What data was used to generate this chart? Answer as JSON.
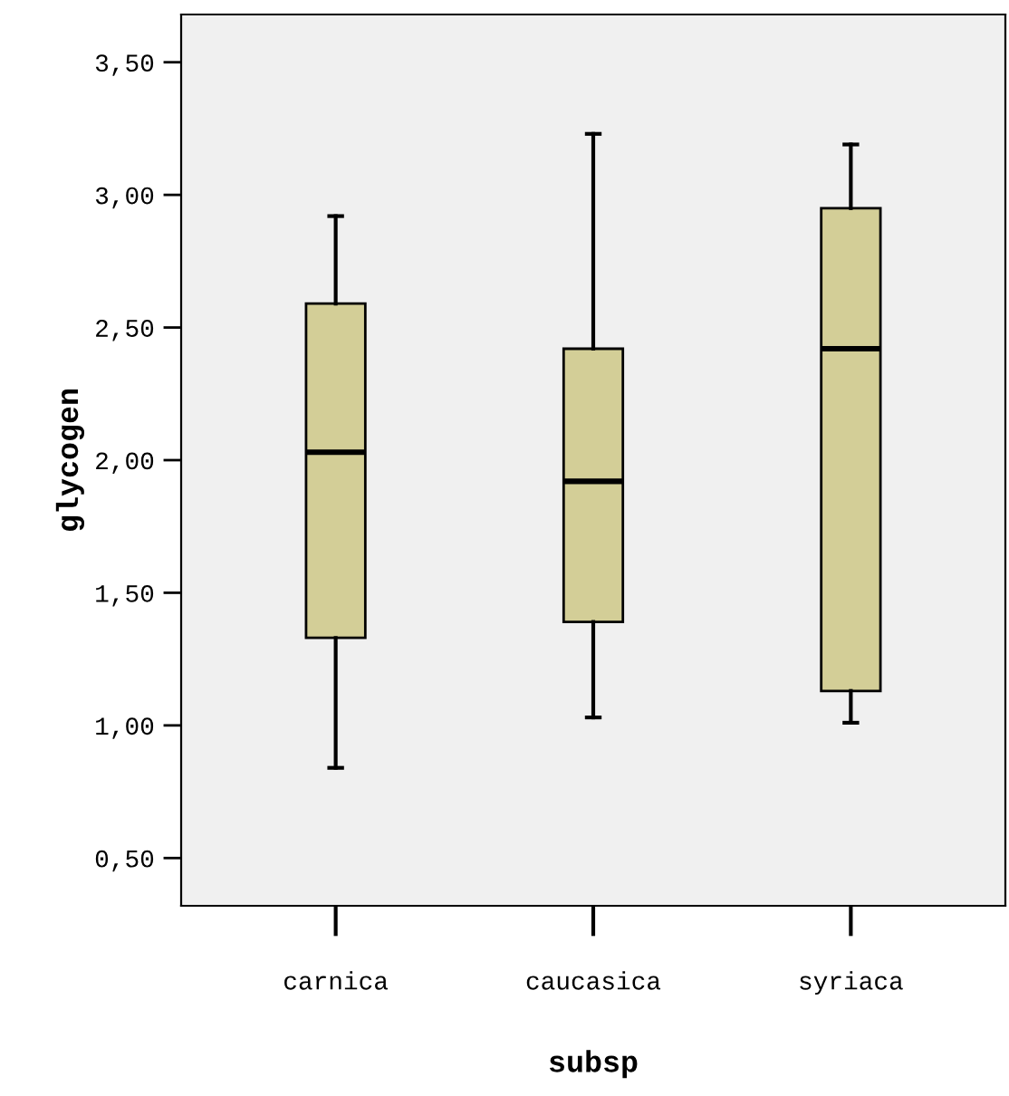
{
  "chart_data": {
    "type": "box",
    "xlabel": "subsp",
    "ylabel": "glycogen",
    "categories": [
      "carnica",
      "caucasica",
      "syriaca"
    ],
    "color": "#d3ce97",
    "boxes": [
      {
        "low": 0.84,
        "q1": 1.33,
        "median": 2.03,
        "q3": 2.59,
        "high": 2.92
      },
      {
        "low": 1.03,
        "q1": 1.39,
        "median": 1.92,
        "q3": 2.42,
        "high": 3.23
      },
      {
        "low": 1.01,
        "q1": 1.13,
        "median": 2.42,
        "q3": 2.95,
        "high": 3.19
      }
    ],
    "ylim": [
      0.32,
      3.68
    ],
    "yticks": [
      {
        "value": 0.5,
        "label": "0,50"
      },
      {
        "value": 1.0,
        "label": "1,00"
      },
      {
        "value": 1.5,
        "label": "1,50"
      },
      {
        "value": 2.0,
        "label": "2,00"
      },
      {
        "value": 2.5,
        "label": "2,50"
      },
      {
        "value": 3.0,
        "label": "3,00"
      },
      {
        "value": 3.5,
        "label": "3,50"
      }
    ],
    "grid": false
  }
}
